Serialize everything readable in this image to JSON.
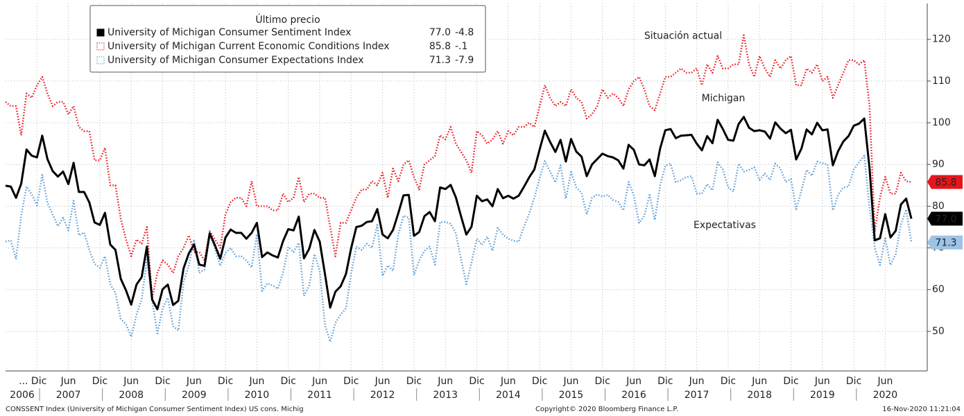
{
  "chart_data": {
    "type": "line",
    "legend_title": "Último precio",
    "annotations": [
      {
        "text": "Situación actual",
        "color": "#e8141b",
        "series": 1
      },
      {
        "text": "Michigan",
        "color": "#000000",
        "series": 0
      },
      {
        "text": "Expectativas",
        "color": "#5b9bd5",
        "series": 2
      }
    ],
    "footer_left": "CONSSENT Index (University of Michigan Consumer Sentiment Index) US cons. Michig",
    "footer_center": "Copyright© 2020 Bloomberg Finance L.P.",
    "footer_right": "16-Nov-2020 11:21:04",
    "years": [
      "2006",
      "2007",
      "2008",
      "2009",
      "2010",
      "2011",
      "2012",
      "2013",
      "2014",
      "2015",
      "2016",
      "2017",
      "2018",
      "2019",
      "2020"
    ],
    "categories": [
      null,
      null,
      null,
      null,
      null,
      null,
      "... Dic",
      null,
      null,
      null,
      null,
      null,
      "Jun",
      null,
      null,
      null,
      null,
      null,
      "Dic",
      null,
      null,
      null,
      null,
      null,
      "Jun",
      null,
      null,
      null,
      null,
      null,
      "Dic",
      null,
      null,
      null,
      null,
      null,
      "Jun",
      null,
      null,
      null,
      null,
      null,
      "Dic",
      null,
      null,
      null,
      null,
      null,
      "Jun",
      null,
      null,
      null,
      null,
      null,
      "Dic",
      null,
      null,
      null,
      null,
      null,
      "Jun",
      null,
      null,
      null,
      null,
      null,
      "Dic",
      null,
      null,
      null,
      null,
      null,
      "Jun",
      null,
      null,
      null,
      null,
      null,
      "Dic",
      null,
      null,
      null,
      null,
      null,
      "Jun",
      null,
      null,
      null,
      null,
      null,
      "Dic",
      null,
      null,
      null,
      null,
      null,
      "Jun",
      null,
      null,
      null,
      null,
      null,
      "Dic",
      null,
      null,
      null,
      null,
      null,
      "Jun",
      null,
      null,
      null,
      null,
      null,
      "Dic",
      null,
      null,
      null,
      null,
      null,
      "Jun",
      null,
      null,
      null,
      null,
      null,
      "Dic",
      null,
      null,
      null,
      null,
      null,
      "Jun",
      null,
      null,
      null,
      null,
      null,
      "Dic",
      null,
      null,
      null,
      null,
      null,
      "Jun",
      null,
      null,
      null,
      null,
      null,
      "Dic",
      null,
      null,
      null,
      null,
      null,
      "Jun",
      null,
      null,
      null,
      null,
      null,
      "Dic",
      null,
      null,
      null,
      null,
      null,
      "Jun",
      null,
      null,
      null,
      null,
      null
    ],
    "ylim": [
      40.5,
      128.6
    ],
    "yticks": [
      50,
      60,
      70,
      80,
      90,
      100,
      110,
      120
    ],
    "grid": true,
    "series": [
      {
        "name": "University of Michigan Consumer Sentiment Index",
        "color": "#000000",
        "style": "solid",
        "last": 77.0,
        "last_label": "77.0",
        "change": -4.8,
        "values": [
          84.9,
          84.7,
          82.0,
          85.4,
          93.6,
          92.1,
          91.7,
          96.9,
          91.3,
          88.4,
          87.1,
          88.3,
          85.3,
          90.4,
          83.4,
          83.4,
          80.9,
          76.1,
          75.5,
          78.4,
          70.8,
          69.5,
          62.6,
          59.8,
          56.4,
          61.2,
          63.0,
          70.3,
          57.6,
          55.3,
          60.1,
          61.2,
          56.3,
          57.3,
          65.1,
          68.7,
          70.8,
          66.0,
          65.7,
          73.5,
          70.6,
          67.4,
          72.5,
          74.4,
          73.6,
          73.6,
          72.2,
          73.6,
          76.0,
          67.8,
          68.9,
          68.2,
          67.7,
          71.6,
          74.5,
          74.2,
          77.5,
          67.5,
          69.8,
          74.3,
          71.5,
          63.7,
          55.7,
          59.5,
          60.8,
          63.7,
          69.9,
          75.0,
          75.3,
          76.2,
          76.4,
          79.3,
          73.2,
          72.3,
          74.3,
          78.3,
          82.6,
          82.7,
          72.9,
          73.8,
          77.6,
          78.6,
          76.4,
          84.5,
          84.1,
          85.1,
          82.1,
          77.5,
          73.2,
          75.1,
          82.5,
          81.2,
          81.6,
          80.0,
          84.1,
          81.9,
          82.5,
          81.8,
          82.5,
          84.6,
          86.9,
          88.8,
          93.6,
          98.1,
          95.4,
          93.0,
          95.9,
          90.7,
          96.1,
          93.1,
          91.9,
          87.2,
          90.0,
          91.3,
          92.6,
          92.0,
          91.7,
          91.0,
          89.0,
          94.7,
          93.5,
          90.0,
          89.8,
          91.2,
          87.2,
          93.8,
          98.2,
          98.5,
          96.3,
          96.9,
          97.0,
          97.1,
          95.0,
          93.4,
          96.8,
          95.1,
          100.7,
          98.5,
          95.9,
          95.7,
          99.7,
          101.4,
          98.8,
          98.0,
          98.2,
          97.9,
          96.2,
          100.1,
          98.6,
          97.5,
          98.3,
          91.2,
          93.8,
          98.4,
          97.2,
          100.0,
          98.2,
          98.4,
          89.8,
          93.2,
          95.5,
          96.8,
          99.3,
          99.8,
          101.0,
          89.1,
          71.8,
          72.3,
          78.1,
          72.5,
          74.1,
          80.4,
          81.8,
          77.0
        ]
      },
      {
        "name": "University of Michigan Current Economic Conditions Index",
        "color": "#e8141b",
        "style": "dotted",
        "last": 85.8,
        "last_label": "85.8",
        "change": -0.1,
        "change_label": "-.1",
        "values": [
          105,
          104,
          104,
          97,
          107,
          106,
          109,
          111,
          107,
          104,
          105,
          105,
          102,
          104,
          99,
          98,
          98,
          91,
          91,
          94,
          85,
          85,
          77,
          72,
          68,
          72,
          71,
          75,
          58,
          64,
          67,
          66,
          64,
          68,
          70,
          73,
          69,
          69,
          67,
          74,
          72,
          70,
          78,
          81,
          82,
          82,
          80,
          86,
          80,
          80,
          80,
          79,
          79,
          83,
          81,
          82,
          87,
          81,
          83,
          83,
          82,
          82,
          75,
          68,
          76,
          76,
          79,
          82,
          84,
          84,
          86,
          85,
          88,
          82,
          89,
          86,
          90,
          91,
          87,
          84,
          90,
          91,
          92,
          97,
          96,
          99,
          95,
          93,
          91,
          88,
          98,
          97,
          95,
          96,
          98,
          95,
          98,
          97,
          99,
          99,
          100,
          99,
          104,
          109,
          106,
          104,
          105,
          104,
          108,
          106,
          105,
          101,
          102,
          104,
          108,
          106,
          107,
          106,
          104,
          108,
          110,
          111,
          108,
          104,
          103,
          107,
          111,
          111,
          112,
          113,
          112,
          112,
          113,
          109,
          114,
          112,
          116,
          113,
          113,
          114,
          114,
          121,
          114,
          111,
          116,
          113,
          111,
          115,
          113,
          115,
          116,
          109,
          109,
          113,
          112,
          114,
          110,
          111,
          106,
          109,
          112,
          115,
          115,
          114,
          115,
          104,
          74,
          82,
          87,
          83,
          83,
          88,
          86,
          85.8
        ]
      },
      {
        "name": "University of Michigan Consumer Expectations Index",
        "color": "#5b9bd5",
        "style": "dotted",
        "last": 71.3,
        "last_label": "71.3",
        "change": -7.9,
        "values": [
          71.5,
          71.8,
          67.3,
          77.7,
          84.7,
          82.8,
          80.2,
          87.5,
          80.8,
          78.0,
          75.2,
          77.2,
          74.2,
          81.3,
          73.0,
          73.7,
          69.5,
          66.2,
          65.2,
          68.0,
          61.3,
          59.2,
          53.0,
          51.7,
          48.7,
          54.0,
          57.7,
          67.2,
          57.3,
          49.5,
          55.5,
          58.0,
          51.2,
          50.2,
          61.8,
          65.8,
          72.0,
          64.0,
          64.8,
          73.2,
          69.7,
          65.7,
          68.8,
          70.0,
          68.0,
          68.0,
          67.0,
          65.3,
          73.3,
          59.7,
          61.5,
          61.0,
          60.2,
          64.0,
          70.2,
          69.0,
          71.2,
          58.5,
          61.0,
          68.5,
          64.5,
          51.5,
          47.5,
          52.0,
          54.0,
          55.5,
          63.8,
          70.3,
          69.5,
          71.0,
          70.0,
          75.5,
          63.3,
          65.8,
          64.5,
          73.2,
          77.7,
          77.2,
          63.5,
          67.0,
          69.3,
          70.3,
          66.0,
          76.2,
          76.2,
          75.8,
          73.5,
          67.2,
          61.3,
          66.5,
          72.2,
          70.7,
          72.7,
          69.3,
          74.8,
          73.2,
          72.2,
          71.7,
          71.5,
          75.0,
          78.2,
          82.0,
          86.7,
          90.8,
          88.3,
          85.7,
          89.8,
          81.8,
          88.2,
          84.5,
          83.2,
          78.0,
          82.0,
          82.8,
          82.3,
          82.7,
          81.5,
          81.0,
          79.0,
          85.8,
          82.5,
          76.0,
          77.7,
          82.7,
          76.7,
          85.0,
          89.7,
          90.2,
          85.8,
          86.2,
          87.0,
          87.2,
          83.0,
          83.0,
          85.3,
          83.8,
          90.5,
          88.8,
          84.5,
          83.5,
          90.2,
          88.3,
          88.7,
          89.3,
          86.3,
          87.8,
          86.3,
          90.2,
          89.0,
          85.8,
          86.5,
          79.3,
          83.7,
          88.7,
          87.3,
          90.7,
          90.3,
          90.0,
          79.0,
          82.7,
          84.5,
          84.7,
          88.8,
          90.5,
          92.1,
          79.7,
          70.1,
          65.9,
          72.3,
          65.9,
          68.5,
          75.6,
          79.2,
          71.3
        ]
      }
    ]
  }
}
